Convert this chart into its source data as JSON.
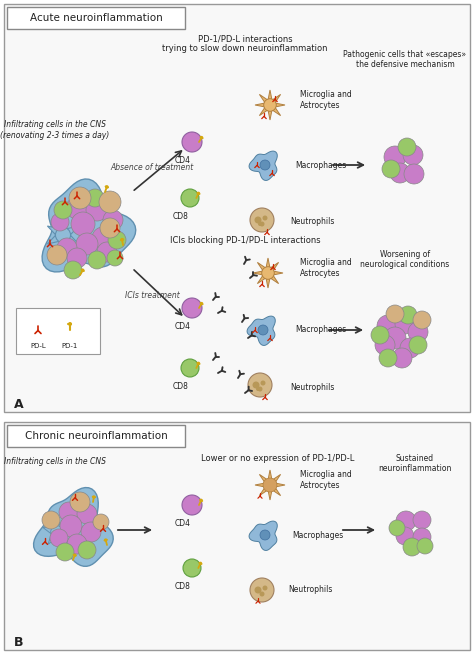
{
  "title_acute": "Acute neuroinflammation",
  "title_chronic": "Chronic neuroinflammation",
  "label_A": "A",
  "label_B": "B",
  "text_infiltrating": "Infiltrating cells in the CNS\n(renovating 2-3 times a day)",
  "text_infiltrating_chronic": "Infiltrating cells in the CNS",
  "text_pd1_pdl_top": "PD-1/PD-L interactions\ntrying to slow down neuroinflammation",
  "text_icis_header": "ICIs blocking PD-1/PD-L interactions",
  "text_pathogenic": "Pathogenic cells that «escapes»\nthe defensive mechanism",
  "text_worsening": "Worsening of\nneurological conditions",
  "text_sustained": "Sustained\nneuroinflammation",
  "text_lower": "Lower or no expression of PD-1/PD-L",
  "text_absence": "Absence of treatment",
  "text_icis_treatment": "ICIs treatment",
  "text_cd4": "CD4",
  "text_cd8": "CD8",
  "text_microglia": "Microglia and\nAstrocytes",
  "text_macrophages": "Macrophages",
  "text_neutrophils": "Neutrophils",
  "text_pdl": "PD-L",
  "text_pd1": "PD-1",
  "bg_color": "#ffffff",
  "cell_purple": "#c87dc8",
  "cell_purple_light": "#d4a0d4",
  "cell_green": "#98c868",
  "cell_green_light": "#b0d888",
  "cell_tan": "#d4b080",
  "cell_tan_dots": "#c49868",
  "cell_blue": "#7ab0d0",
  "cell_blue_light": "#90c0e0",
  "astrocyte_color": "#e8b870",
  "astrocyte_body": "#d4a060",
  "macrophage_color": "#90b8d8",
  "macrophage_center": "#6090b8",
  "neutrophil_color": "#d4b888",
  "neutrophil_dots": "#b89858",
  "arrow_color": "#333333",
  "red_marker": "#cc2200",
  "yellow_marker": "#d4a810",
  "black_antibody": "#333333",
  "panel_border": "#999999",
  "title_box_border": "#888888",
  "panel_bg": "#f8f8f8"
}
